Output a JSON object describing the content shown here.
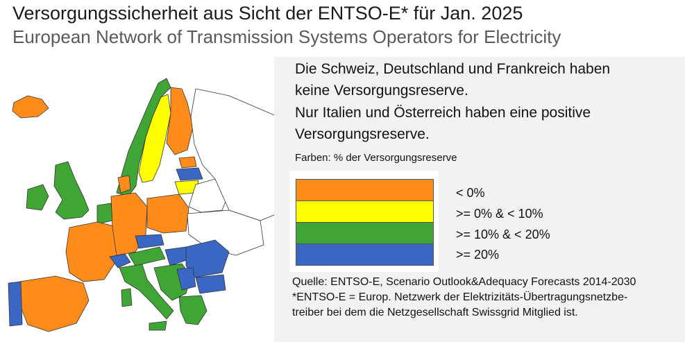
{
  "title": "Versorgungssicherheit aus Sicht der ENTSO-E* für Jan. 2025",
  "subtitle": "European Network of Transmission Systems Operators for Electricity",
  "text": {
    "line1": "Die Schweiz, Deutschland und Frankreich haben",
    "line2": "keine Versorgungsreserve.",
    "line3": "Nur Italien und Österreich haben eine positive",
    "line4": "Versorgungsreserve."
  },
  "legend": {
    "caption": "Farben: % der Versorgungsreserve",
    "items": [
      {
        "label": "< 0%",
        "color": "#ff8c1a"
      },
      {
        "label": ">= 0% & < 10%",
        "color": "#ffff00"
      },
      {
        "label": ">= 10% & < 20%",
        "color": "#3fa535"
      },
      {
        "label": ">= 20%",
        "color": "#3a66c4"
      }
    ]
  },
  "source": {
    "line1": "Quelle: ENTSO-E, Scenario Outlook&Adequacy Forecasts 2014-2030",
    "line2": "*ENTSO-E = Europ. Netzwerk der Elektrizitäts-Übertragungsnetzbe-",
    "line3": "treiber bei dem die Netzgesellschaft Swissgrid Mitglied ist."
  },
  "map": {
    "colors": {
      "orange": "#ff8c1a",
      "yellow": "#ffff00",
      "green": "#3fa535",
      "blue": "#3a66c4",
      "none": "#ffffff"
    }
  }
}
